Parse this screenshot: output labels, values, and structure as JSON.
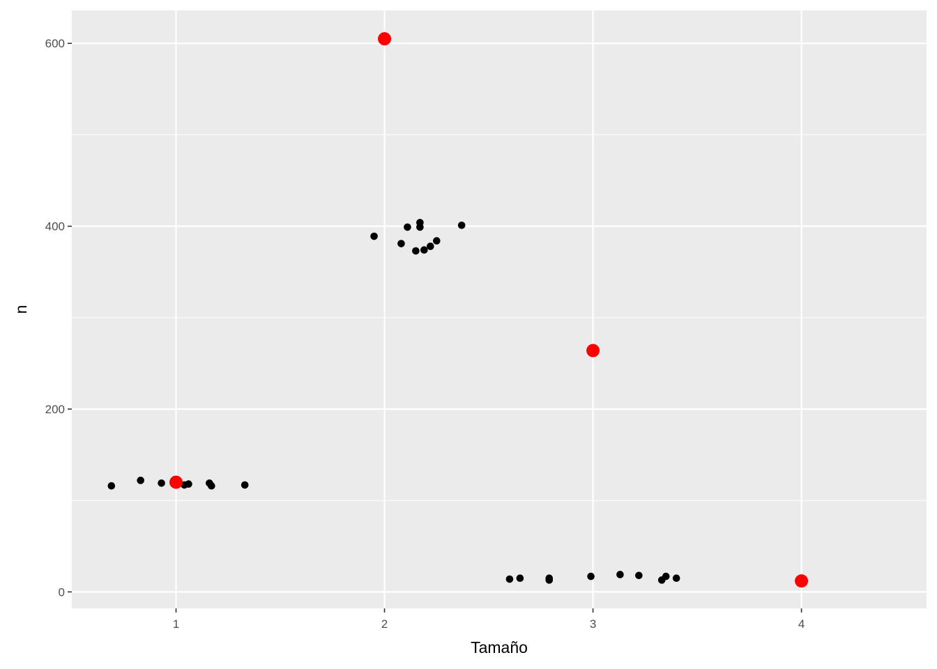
{
  "chart_data": {
    "type": "scatter",
    "title": "",
    "xlabel": "Tamaño",
    "ylabel": "n",
    "xlim": [
      0.5,
      4.6
    ],
    "ylim": [
      -18,
      636
    ],
    "x_ticks": [
      1,
      2,
      3,
      4
    ],
    "x_tick_labels": [
      "1",
      "2",
      "3",
      "4"
    ],
    "y_ticks": [
      0,
      200,
      400,
      600
    ],
    "y_tick_labels": [
      "0",
      "200",
      "400",
      "600"
    ],
    "y_minor_ticks": [
      100,
      300,
      500
    ],
    "grid": true,
    "legend": "none",
    "series": [
      {
        "color": "#000000",
        "points": [
          {
            "x": 0.69,
            "y": 116
          },
          {
            "x": 0.83,
            "y": 122
          },
          {
            "x": 0.93,
            "y": 119
          },
          {
            "x": 1.04,
            "y": 117
          },
          {
            "x": 1.06,
            "y": 118
          },
          {
            "x": 1.16,
            "y": 119
          },
          {
            "x": 1.17,
            "y": 116
          },
          {
            "x": 1.33,
            "y": 117
          },
          {
            "x": 1.95,
            "y": 389
          },
          {
            "x": 2.08,
            "y": 381
          },
          {
            "x": 2.11,
            "y": 399
          },
          {
            "x": 2.15,
            "y": 373
          },
          {
            "x": 2.17,
            "y": 399
          },
          {
            "x": 2.17,
            "y": 404
          },
          {
            "x": 2.19,
            "y": 374
          },
          {
            "x": 2.22,
            "y": 378
          },
          {
            "x": 2.25,
            "y": 384
          },
          {
            "x": 2.37,
            "y": 401
          },
          {
            "x": 2.6,
            "y": 14
          },
          {
            "x": 2.65,
            "y": 15
          },
          {
            "x": 2.79,
            "y": 13
          },
          {
            "x": 2.79,
            "y": 15
          },
          {
            "x": 2.99,
            "y": 17
          },
          {
            "x": 3.13,
            "y": 19
          },
          {
            "x": 3.22,
            "y": 18
          },
          {
            "x": 3.33,
            "y": 13
          },
          {
            "x": 3.35,
            "y": 17
          },
          {
            "x": 3.4,
            "y": 15
          }
        ]
      },
      {
        "color": "#ff0000",
        "points": [
          {
            "x": 1,
            "y": 120
          },
          {
            "x": 2,
            "y": 605
          },
          {
            "x": 3,
            "y": 264
          },
          {
            "x": 4,
            "y": 12
          }
        ]
      }
    ]
  }
}
